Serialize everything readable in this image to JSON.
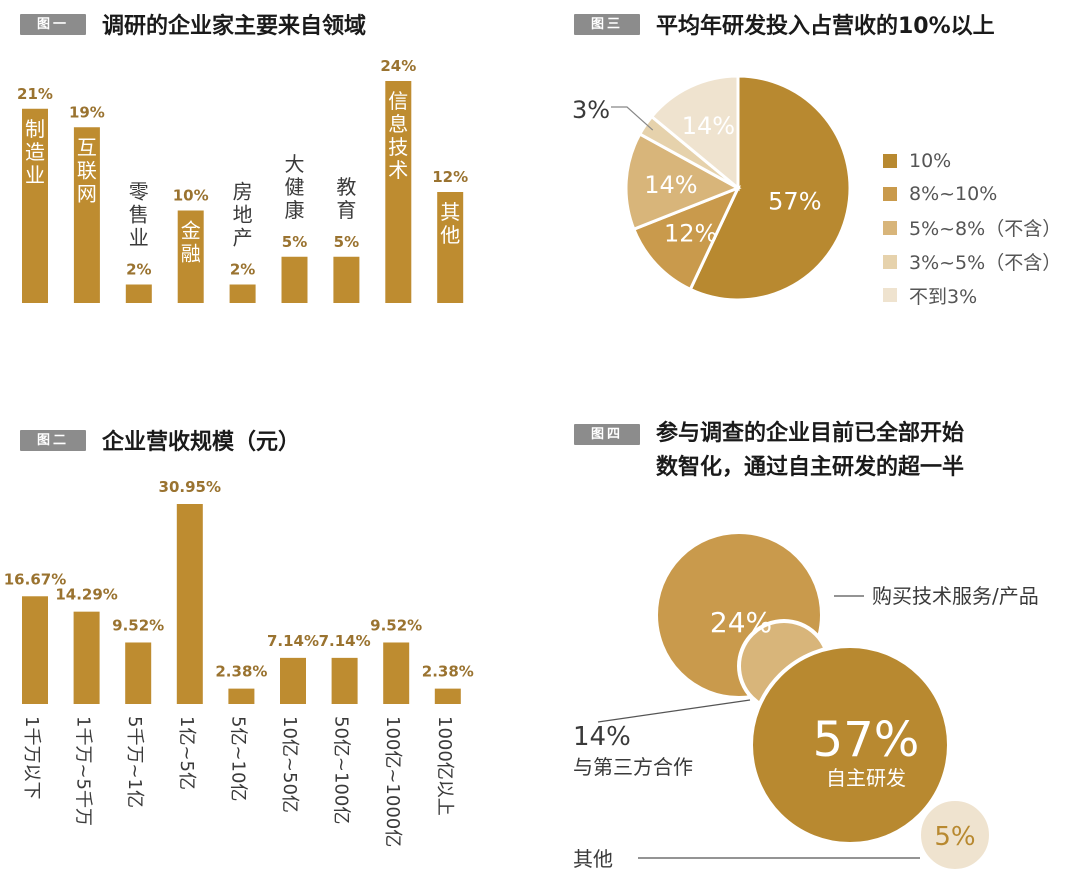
{
  "colors": {
    "bar": "#be8c30",
    "bar_dark": "#b48428",
    "badge": "#8c8c8c"
  },
  "fig1": {
    "badge": "图一",
    "title": "调研的企业家主要来自领域",
    "chart_data": {
      "type": "bar",
      "categories": [
        "制造业",
        "互联网",
        "零售业",
        "金融",
        "房地产",
        "大健康",
        "教育",
        "信息技术",
        "其他"
      ],
      "values": [
        21,
        19,
        2,
        10,
        2,
        5,
        5,
        24,
        12
      ],
      "value_labels": [
        "21%",
        "19%",
        "2%",
        "10%",
        "2%",
        "5%",
        "5%",
        "24%",
        "12%"
      ],
      "ylim": [
        0,
        24
      ]
    }
  },
  "fig2": {
    "badge": "图二",
    "title": "企业营收规模（元）",
    "chart_data": {
      "type": "bar",
      "categories": [
        "1千万以下",
        "1千万~5千万",
        "5千万~1亿",
        "1亿~5亿",
        "5亿~10亿",
        "10亿~50亿",
        "50亿~100亿",
        "100亿~1000亿",
        "1000亿以上"
      ],
      "values": [
        16.67,
        14.29,
        9.52,
        30.95,
        2.38,
        7.14,
        7.14,
        9.52,
        2.38
      ],
      "value_labels": [
        "16.67%",
        "14.29%",
        "9.52%",
        "30.95%",
        "2.38%",
        "7.14%",
        "7.14%",
        "9.52%",
        "2.38%"
      ],
      "ylim": [
        0,
        30.95
      ]
    }
  },
  "fig3": {
    "badge": "图三",
    "title": "平均年研发投入占营收的10%以上",
    "chart_data": {
      "type": "pie",
      "labels": [
        "10%",
        "8%~10%",
        "5%~8%（不含）",
        "3%~5%（不含）",
        "不到3%"
      ],
      "values": [
        57,
        12,
        14,
        3,
        14
      ],
      "slice_labels": [
        "57%",
        "12%",
        "14%",
        "3%",
        "14%"
      ],
      "colors": [
        "#b88930",
        "#c99a4c",
        "#d8b57a",
        "#e6d2ac",
        "#efe3cf"
      ],
      "legend_position": "right"
    }
  },
  "fig4": {
    "badge": "图四",
    "title_line1": "参与调查的企业目前已全部开始",
    "title_line2": "数智化，通过自主研发的超一半",
    "chart_data": {
      "type": "bubble",
      "items": [
        {
          "name": "自主研发",
          "value": 57,
          "label": "57%",
          "color": "#b88930"
        },
        {
          "name": "购买技术服务/产品",
          "value": 24,
          "label": "24%",
          "color": "#c99a4c"
        },
        {
          "name": "与第三方合作",
          "value": 14,
          "label": "14%",
          "color": "#d8b57a"
        },
        {
          "name": "其他",
          "value": 5,
          "label": "5%",
          "color": "#efe3cf"
        }
      ]
    }
  }
}
